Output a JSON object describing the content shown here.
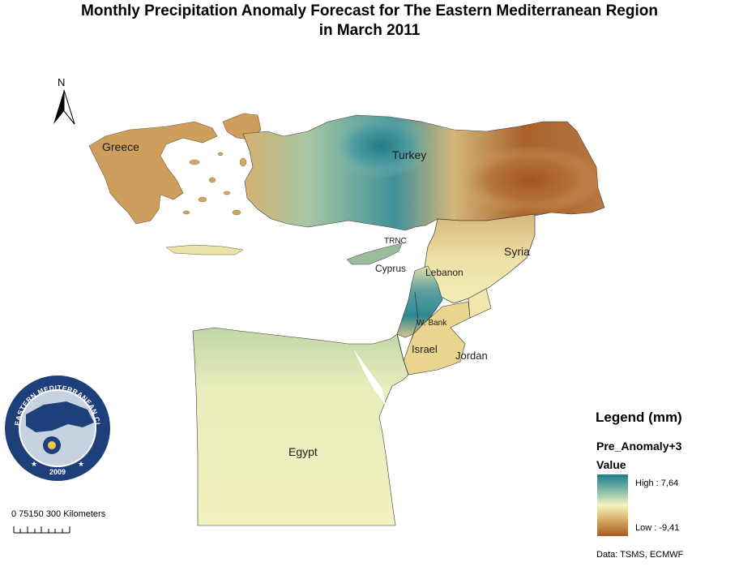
{
  "title": {
    "line1": "Monthly Precipitation Anomaly Forecast for  The Eastern Mediterranean Region",
    "line2": "in March 2011"
  },
  "map_labels": {
    "greece": "Greece",
    "turkey": "Turkey",
    "trnc": "TRNC",
    "cyprus": "Cyprus",
    "lebanon": "Lebanon",
    "syria": "Syria",
    "west_bank": "W. Bank",
    "israel": "Israel",
    "jordan": "Jordan",
    "egypt": "Egypt"
  },
  "north_arrow": {
    "label": "N"
  },
  "scale_bar": {
    "text": "0  75150   300 Kilometers"
  },
  "logo": {
    "ring_text": "EASTERN MEDITERRANEAN CLIMATE CENTRE",
    "year": "2009"
  },
  "legend": {
    "title": "Legend (mm)",
    "layer": "Pre_Anomaly+3",
    "value_heading": "Value",
    "high_label": "High : 7,64",
    "low_label": "Low : -9,41",
    "high_value": 7.64,
    "low_value": -9.41,
    "colors": {
      "high": "#1f7d8a",
      "mid": "#f6f3bf",
      "low": "#a85a20"
    }
  },
  "data_source": "Data:  TSMS, ECMWF"
}
